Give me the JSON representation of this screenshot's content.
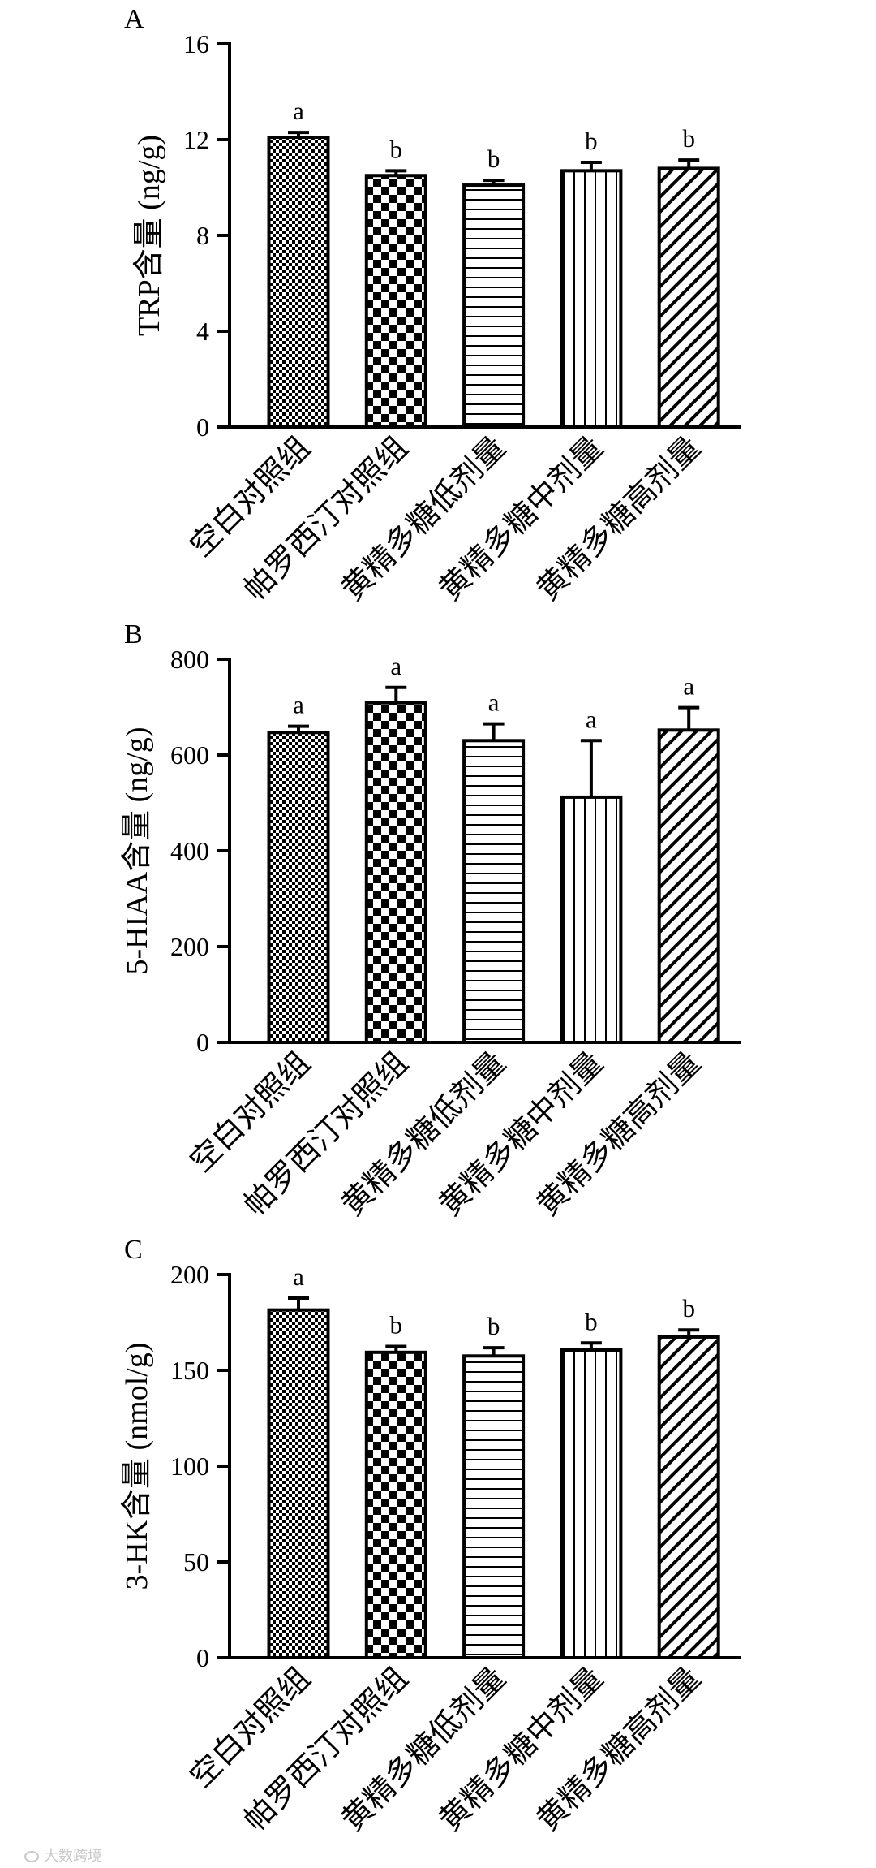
{
  "figure": {
    "watermark": "大数跨境"
  },
  "colors": {
    "ink": "#000000",
    "background": "#ffffff",
    "watermark": "#c8c8c8"
  },
  "chart_data": [
    {
      "panel": "A",
      "type": "bar",
      "ylabel": "TRP含量 (ng/g)",
      "ylim": [
        0,
        16
      ],
      "yticks": [
        0,
        4,
        8,
        12,
        16
      ],
      "grid": false,
      "categories": [
        "空白对照组",
        "帕罗西汀对照组",
        "黄精多糖低剂量",
        "黄精多糖中剂量",
        "黄精多糖高剂量"
      ],
      "values": [
        12.1,
        10.5,
        10.1,
        10.7,
        10.8
      ],
      "errors": [
        0.2,
        0.2,
        0.2,
        0.35,
        0.35
      ],
      "significance": [
        "a",
        "b",
        "b",
        "b",
        "b"
      ],
      "bar_patterns": [
        "fine-checker",
        "checker",
        "horizontal-lines",
        "vertical-lines",
        "diagonal-lines"
      ]
    },
    {
      "panel": "B",
      "type": "bar",
      "ylabel": "5-HIAA含量 (ng/g)",
      "ylim": [
        0,
        800
      ],
      "yticks": [
        0,
        200,
        400,
        600,
        800
      ],
      "grid": false,
      "categories": [
        "空白对照组",
        "帕罗西汀对照组",
        "黄精多糖低剂量",
        "黄精多糖中剂量",
        "黄精多糖高剂量"
      ],
      "values": [
        647,
        709,
        630,
        512,
        652
      ],
      "errors": [
        13,
        32,
        35,
        118,
        47
      ],
      "significance": [
        "a",
        "a",
        "a",
        "a",
        "a"
      ],
      "bar_patterns": [
        "fine-checker",
        "checker",
        "horizontal-lines",
        "vertical-lines",
        "diagonal-lines"
      ]
    },
    {
      "panel": "C",
      "type": "bar",
      "ylabel": "3-HK含量 (nmol/g)",
      "ylim": [
        0,
        200
      ],
      "yticks": [
        0,
        50,
        100,
        150,
        200
      ],
      "grid": false,
      "categories": [
        "空白对照组",
        "帕罗西汀对照组",
        "黄精多糖低剂量",
        "黄精多糖中剂量",
        "黄精多糖高剂量"
      ],
      "values": [
        181.5,
        159.4,
        157.5,
        160.6,
        167.4
      ],
      "errors": [
        6.2,
        3.1,
        4.3,
        3.7,
        3.7
      ],
      "significance": [
        "a",
        "b",
        "b",
        "b",
        "b"
      ],
      "bar_patterns": [
        "fine-checker",
        "checker",
        "horizontal-lines",
        "vertical-lines",
        "diagonal-lines"
      ]
    }
  ]
}
